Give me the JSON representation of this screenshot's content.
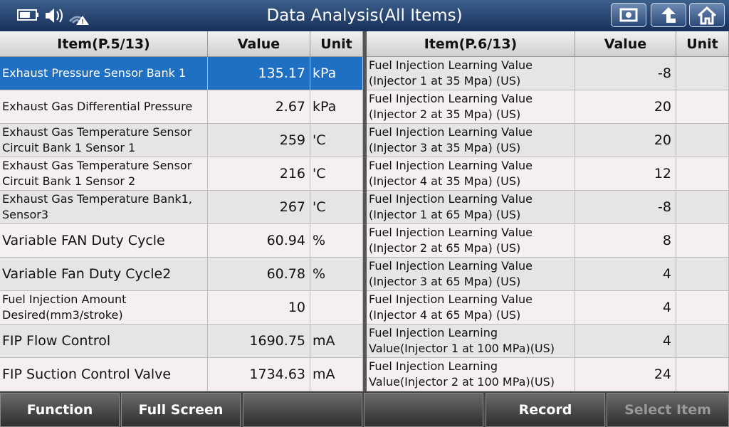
{
  "header": {
    "title": "Data Analysis(All Items)"
  },
  "left_table": {
    "columns": [
      "Item(P.5/13)",
      "Value",
      "Unit"
    ],
    "rows": [
      {
        "item": "Exhaust Pressure Sensor Bank 1",
        "value": "135.17",
        "unit": "kPa"
      },
      {
        "item": "Exhaust Gas Differential Pressure",
        "value": "2.67",
        "unit": "kPa"
      },
      {
        "item": "Exhaust Gas Temperature Sensor\nCircuit Bank 1 Sensor 1",
        "value": "259",
        "unit": "'C"
      },
      {
        "item": "Exhaust Gas Temperature Sensor\nCircuit Bank 1 Sensor 2",
        "value": "216",
        "unit": "'C"
      },
      {
        "item": "Exhaust Gas Temperature Bank1,\nSensor3",
        "value": "267",
        "unit": "'C"
      },
      {
        "item": "Variable FAN Duty Cycle",
        "value": "60.94",
        "unit": "%"
      },
      {
        "item": "Variable Fan Duty Cycle2",
        "value": "60.78",
        "unit": "%"
      },
      {
        "item": "Fuel Injection Amount\nDesired(mm3/stroke)",
        "value": "10"
      },
      {
        "item": "FIP Flow Control",
        "value": "1690.75",
        "unit": "mA"
      },
      {
        "item": "FIP Suction Control Valve",
        "value": "1734.63",
        "unit": "mA"
      }
    ]
  },
  "right_table": {
    "columns": [
      "Item(P.6/13)",
      "Value",
      "Unit"
    ],
    "rows": [
      {
        "item": "Fuel Injection Learning Value\n(Injector 1 at 35 Mpa) (US)",
        "value": "-8"
      },
      {
        "item": "Fuel Injection Learning Value\n(Injector 2 at 35 Mpa) (US)",
        "value": "20"
      },
      {
        "item": "Fuel Injection Learning Value\n(Injector 3 at 35 Mpa) (US)",
        "value": "20"
      },
      {
        "item": "Fuel Injection Learning Value\n(Injector 4 at 35 Mpa) (US)",
        "value": "12"
      },
      {
        "item": "Fuel Injection Learning Value\n(Injector 1 at 65 Mpa) (US)",
        "value": "-8"
      },
      {
        "item": "Fuel Injection Learning Value\n(Injector 2 at 65 Mpa) (US)",
        "value": "8"
      },
      {
        "item": "Fuel Injection Learning Value\n(Injector 3 at 65 Mpa) (US)",
        "value": "4"
      },
      {
        "item": "Fuel Injection Learning Value\n(Injector 4 at 65 Mpa) (US)",
        "value": "4"
      },
      {
        "item": "Fuel Injection Learning\nValue(Injector 1 at 100 MPa)(US)",
        "value": "4"
      },
      {
        "item": "Fuel Injection Learning\nValue(Injector 2 at 100 MPa)(US)",
        "value": "24"
      }
    ]
  },
  "footer": {
    "buttons": [
      "Function",
      "Full Screen",
      "Record",
      "Select Item"
    ]
  }
}
